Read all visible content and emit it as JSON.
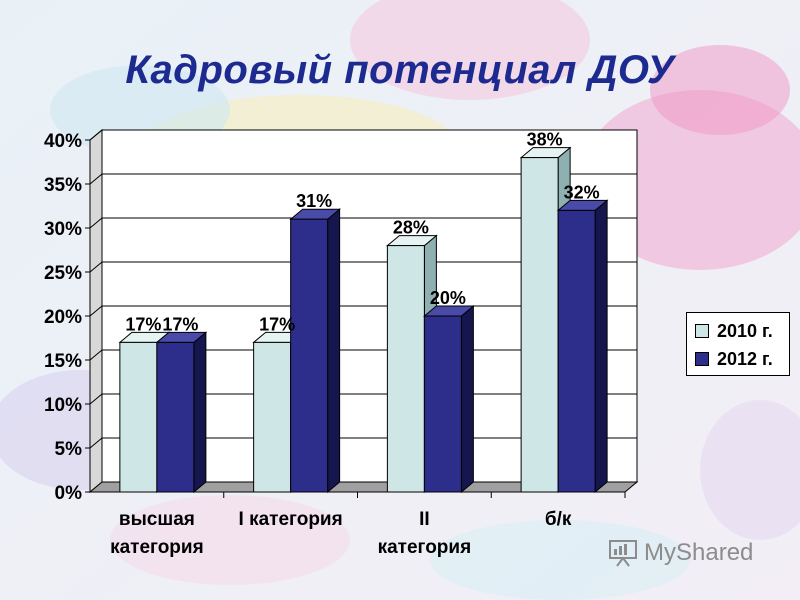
{
  "title": "Кадровый потенциал ДОУ",
  "colors": {
    "series_2010": "#cfe6e6",
    "series_2010_side": "#8fb0b0",
    "series_2012": "#2d2d8c",
    "series_2012_side": "#16164f",
    "title": "#1d2a8f"
  },
  "chart_data": {
    "type": "bar",
    "categories": [
      "высшая категория",
      "I категория",
      "II категория",
      "б/к"
    ],
    "category_labels": [
      [
        "высшая",
        "категория"
      ],
      [
        "I категория"
      ],
      [
        "II",
        "категория"
      ],
      [
        "б/к"
      ]
    ],
    "series": [
      {
        "name": "2010 г.",
        "values": [
          17,
          17,
          28,
          38
        ],
        "labels": [
          "17%",
          "17%",
          "28%",
          "38%"
        ]
      },
      {
        "name": "2012 г.",
        "values": [
          17,
          31,
          20,
          32
        ],
        "labels": [
          "17%",
          "31%",
          "20%",
          "32%"
        ]
      }
    ],
    "y_ticks": [
      "0%",
      "5%",
      "10%",
      "15%",
      "20%",
      "25%",
      "30%",
      "35%",
      "40%"
    ],
    "ylim": [
      0,
      40
    ],
    "grid": true,
    "legend": "right",
    "three_d": true
  },
  "watermark": {
    "text": "MyShared",
    "icon": "presentation-board-icon"
  }
}
